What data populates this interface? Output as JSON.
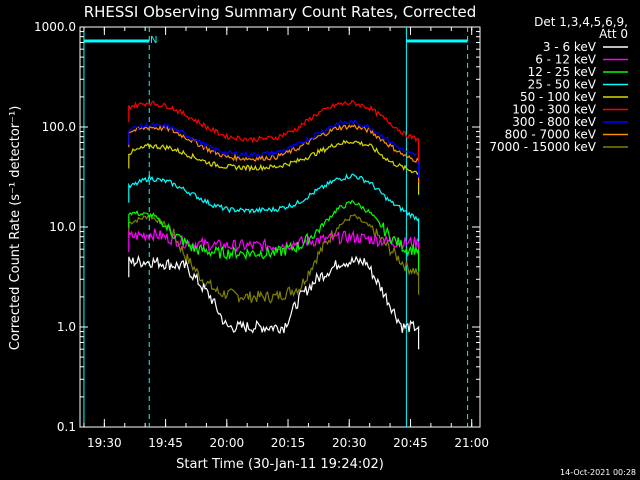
{
  "chart_data": {
    "type": "line",
    "title": "RHESSI Observing Summary Count Rates, Corrected",
    "xlabel": "Start Time (30-Jan-11 19:24:02)",
    "ylabel": "Corrected Count Rate (s⁻¹ detector⁻¹)",
    "y_scale": "log",
    "ylim": [
      0.1,
      1000
    ],
    "xlim_minutes": [
      0,
      98
    ],
    "y_tick_labels": [
      "1000.0",
      "100.0",
      "10.0",
      "1.0",
      "0.1"
    ],
    "y_ticks": [
      1000,
      100,
      10,
      1,
      0.1
    ],
    "x_tick_labels": [
      "19:30",
      "19:45",
      "20:00",
      "20:15",
      "20:30",
      "20:45",
      "21:00"
    ],
    "x_ticks": [
      "19:30",
      "19:45",
      "20:00",
      "20:15",
      "20:30",
      "20:45",
      "21:00"
    ],
    "legend_header": [
      "Det 1,3,4,5,6,9,",
      "Att 0"
    ],
    "legend_position": "outside-right",
    "series": [
      {
        "name": "3 - 6 keV",
        "color": "#ffffff",
        "points": [
          [
            "19:36",
            4.5
          ],
          [
            "19:42",
            4.5
          ],
          [
            "19:50",
            4
          ],
          [
            "19:56",
            2
          ],
          [
            "20:00",
            1
          ],
          [
            "20:08",
            1
          ],
          [
            "20:14",
            1
          ],
          [
            "20:18",
            2
          ],
          [
            "20:22",
            3
          ],
          [
            "20:28",
            4.5
          ],
          [
            "20:34",
            4.5
          ],
          [
            "20:39",
            2
          ],
          [
            "20:43",
            1
          ],
          [
            "20:47",
            1
          ]
        ]
      },
      {
        "name": "6 - 12 keV",
        "color": "#ff00ff",
        "points": [
          [
            "19:36",
            8
          ],
          [
            "19:42",
            8.5
          ],
          [
            "19:50",
            7
          ],
          [
            "19:58",
            6.5
          ],
          [
            "20:05",
            6.5
          ],
          [
            "20:12",
            6.5
          ],
          [
            "20:18",
            7
          ],
          [
            "20:24",
            7.5
          ],
          [
            "20:30",
            8
          ],
          [
            "20:36",
            7.5
          ],
          [
            "20:42",
            7
          ],
          [
            "20:47",
            7
          ]
        ]
      },
      {
        "name": "12 - 25 keV",
        "color": "#00ff00",
        "points": [
          [
            "19:36",
            14
          ],
          [
            "19:42",
            13
          ],
          [
            "19:47",
            8.5
          ],
          [
            "19:52",
            6
          ],
          [
            "19:58",
            5.5
          ],
          [
            "20:05",
            5.5
          ],
          [
            "20:12",
            5.5
          ],
          [
            "20:18",
            6.5
          ],
          [
            "20:22",
            9
          ],
          [
            "20:27",
            15
          ],
          [
            "20:31",
            18
          ],
          [
            "20:35",
            14
          ],
          [
            "20:40",
            8
          ],
          [
            "20:44",
            6
          ],
          [
            "20:47",
            6
          ]
        ]
      },
      {
        "name": "25 - 50 keV",
        "color": "#00ffff",
        "points": [
          [
            "19:36",
            25
          ],
          [
            "19:41",
            31
          ],
          [
            "19:46",
            28
          ],
          [
            "19:51",
            22
          ],
          [
            "19:56",
            17
          ],
          [
            "20:00",
            15
          ],
          [
            "20:06",
            14.5
          ],
          [
            "20:12",
            15
          ],
          [
            "20:17",
            17
          ],
          [
            "20:22",
            23
          ],
          [
            "20:27",
            30
          ],
          [
            "20:31",
            33
          ],
          [
            "20:35",
            28
          ],
          [
            "20:40",
            18
          ],
          [
            "20:44",
            14
          ],
          [
            "20:47",
            12
          ]
        ]
      },
      {
        "name": "50 - 100 keV",
        "color": "#d8d800",
        "points": [
          [
            "19:36",
            55
          ],
          [
            "19:41",
            65
          ],
          [
            "19:46",
            62
          ],
          [
            "19:51",
            52
          ],
          [
            "19:56",
            43
          ],
          [
            "20:00",
            40
          ],
          [
            "20:06",
            39
          ],
          [
            "20:12",
            40
          ],
          [
            "20:17",
            45
          ],
          [
            "20:22",
            55
          ],
          [
            "20:27",
            68
          ],
          [
            "20:31",
            72
          ],
          [
            "20:35",
            65
          ],
          [
            "20:40",
            45
          ],
          [
            "20:44",
            38
          ],
          [
            "20:47",
            35
          ]
        ]
      },
      {
        "name": "100 - 300 keV",
        "color": "#ff0000",
        "points": [
          [
            "19:36",
            160
          ],
          [
            "19:41",
            175
          ],
          [
            "19:46",
            160
          ],
          [
            "19:51",
            125
          ],
          [
            "19:56",
            95
          ],
          [
            "20:00",
            80
          ],
          [
            "20:06",
            75
          ],
          [
            "20:12",
            78
          ],
          [
            "20:17",
            95
          ],
          [
            "20:22",
            135
          ],
          [
            "20:27",
            168
          ],
          [
            "20:31",
            175
          ],
          [
            "20:35",
            155
          ],
          [
            "20:40",
            110
          ],
          [
            "20:44",
            82
          ],
          [
            "20:47",
            75
          ]
        ]
      },
      {
        "name": "300 - 800 keV",
        "color": "#0000ff",
        "points": [
          [
            "19:36",
            95
          ],
          [
            "19:41",
            105
          ],
          [
            "19:46",
            100
          ],
          [
            "19:51",
            80
          ],
          [
            "19:56",
            62
          ],
          [
            "20:00",
            55
          ],
          [
            "20:06",
            53
          ],
          [
            "20:12",
            55
          ],
          [
            "20:17",
            65
          ],
          [
            "20:22",
            85
          ],
          [
            "20:27",
            108
          ],
          [
            "20:31",
            112
          ],
          [
            "20:35",
            100
          ],
          [
            "20:40",
            72
          ],
          [
            "20:44",
            55
          ],
          [
            "20:47",
            52
          ]
        ]
      },
      {
        "name": "800 - 7000 keV",
        "color": "#ff8c00",
        "points": [
          [
            "19:36",
            90
          ],
          [
            "19:41",
            100
          ],
          [
            "19:46",
            95
          ],
          [
            "19:51",
            75
          ],
          [
            "19:56",
            58
          ],
          [
            "20:00",
            50
          ],
          [
            "20:06",
            48
          ],
          [
            "20:12",
            50
          ],
          [
            "20:17",
            60
          ],
          [
            "20:22",
            78
          ],
          [
            "20:27",
            98
          ],
          [
            "20:31",
            102
          ],
          [
            "20:35",
            92
          ],
          [
            "20:40",
            65
          ],
          [
            "20:44",
            50
          ],
          [
            "20:47",
            46
          ]
        ]
      },
      {
        "name": "7000 - 15000 keV",
        "color": "#808000",
        "points": [
          [
            "19:36",
            11
          ],
          [
            "19:41",
            13
          ],
          [
            "19:46",
            10
          ],
          [
            "19:50",
            5
          ],
          [
            "19:54",
            3
          ],
          [
            "19:58",
            2.2
          ],
          [
            "20:05",
            2
          ],
          [
            "20:12",
            2
          ],
          [
            "20:18",
            2.5
          ],
          [
            "20:22",
            5
          ],
          [
            "20:27",
            10
          ],
          [
            "20:31",
            13
          ],
          [
            "20:35",
            10
          ],
          [
            "20:40",
            6
          ],
          [
            "20:44",
            4
          ],
          [
            "20:47",
            3.5
          ]
        ]
      }
    ],
    "annotations": {
      "timestamp": "14-Oct-2021 00:28",
      "flag_label": "N",
      "night_bar_color": "#00ffff"
    }
  }
}
